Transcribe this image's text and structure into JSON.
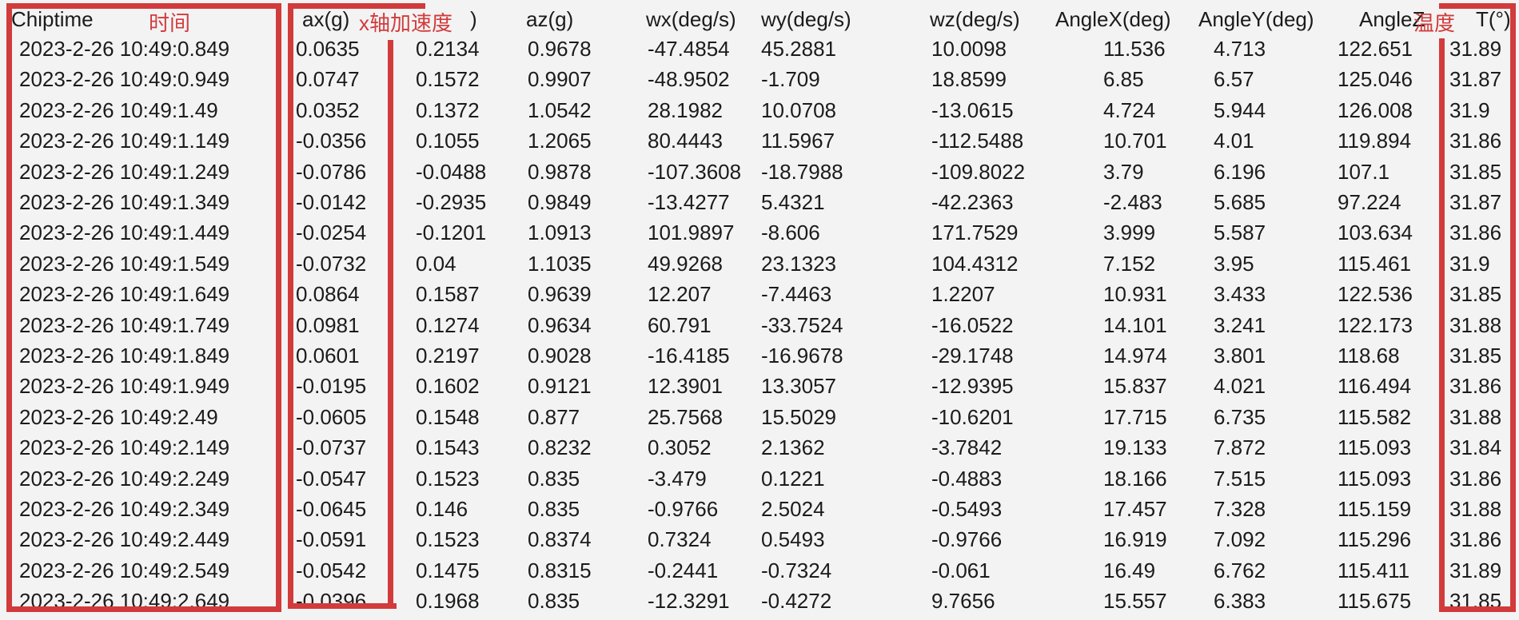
{
  "table": {
    "headers": {
      "chiptime": "Chiptime",
      "chiptime_annotation": "时间",
      "ax": "ax(g)",
      "ax_annotation": "x轴加速度",
      "ax_annotation_suffix": ")",
      "az": "az(g)",
      "wx": "wx(deg/s)",
      "wy": "wy(deg/s)",
      "wz": "wz(deg/s)",
      "angle_x": "AngleX(deg)",
      "angle_y": "AngleY(deg)",
      "angle_z": "AngleZ",
      "temperature_annotation": "温度",
      "t": "T(°)"
    },
    "columns": [
      "Chiptime",
      "ax(g)",
      "ay(g)",
      "az(g)",
      "wx(deg/s)",
      "wy(deg/s)",
      "wz(deg/s)",
      "AngleX(deg)",
      "AngleY(deg)",
      "AngleZ",
      "T(°)"
    ],
    "rows": [
      [
        "2023-2-26 10:49:0.849",
        "0.0635",
        "0.2134",
        "0.9678",
        "-47.4854",
        "45.2881",
        "10.0098",
        "11.536",
        "4.713",
        "122.651",
        "31.89"
      ],
      [
        "2023-2-26 10:49:0.949",
        "0.0747",
        "0.1572",
        "0.9907",
        "-48.9502",
        "-1.709",
        "18.8599",
        "6.85",
        "6.57",
        "125.046",
        "31.87"
      ],
      [
        "2023-2-26 10:49:1.49",
        "0.0352",
        "0.1372",
        "1.0542",
        "28.1982",
        "10.0708",
        "-13.0615",
        "4.724",
        "5.944",
        "126.008",
        "31.9"
      ],
      [
        "2023-2-26 10:49:1.149",
        "-0.0356",
        "0.1055",
        "1.2065",
        "80.4443",
        "11.5967",
        "-112.5488",
        "10.701",
        "4.01",
        "119.894",
        "31.86"
      ],
      [
        "2023-2-26 10:49:1.249",
        "-0.0786",
        "-0.0488",
        "0.9878",
        "-107.3608",
        "-18.7988",
        "-109.8022",
        "3.79",
        "6.196",
        "107.1",
        "31.85"
      ],
      [
        "2023-2-26 10:49:1.349",
        "-0.0142",
        "-0.2935",
        "0.9849",
        "-13.4277",
        "5.4321",
        "-42.2363",
        "-2.483",
        "5.685",
        "97.224",
        "31.87"
      ],
      [
        "2023-2-26 10:49:1.449",
        "-0.0254",
        "-0.1201",
        "1.0913",
        "101.9897",
        "-8.606",
        "171.7529",
        "3.999",
        "5.587",
        "103.634",
        "31.86"
      ],
      [
        "2023-2-26 10:49:1.549",
        "-0.0732",
        "0.04",
        "1.1035",
        "49.9268",
        "23.1323",
        "104.4312",
        "7.152",
        "3.95",
        "115.461",
        "31.9"
      ],
      [
        "2023-2-26 10:49:1.649",
        "0.0864",
        "0.1587",
        "0.9639",
        "12.207",
        "-7.4463",
        "1.2207",
        "10.931",
        "3.433",
        "122.536",
        "31.85"
      ],
      [
        "2023-2-26 10:49:1.749",
        "0.0981",
        "0.1274",
        "0.9634",
        "60.791",
        "-33.7524",
        "-16.0522",
        "14.101",
        "3.241",
        "122.173",
        "31.88"
      ],
      [
        "2023-2-26 10:49:1.849",
        "0.0601",
        "0.2197",
        "0.9028",
        "-16.4185",
        "-16.9678",
        "-29.1748",
        "14.974",
        "3.801",
        "118.68",
        "31.85"
      ],
      [
        "2023-2-26 10:49:1.949",
        "-0.0195",
        "0.1602",
        "0.9121",
        "12.3901",
        "13.3057",
        "-12.9395",
        "15.837",
        "4.021",
        "116.494",
        "31.86"
      ],
      [
        "2023-2-26 10:49:2.49",
        "-0.0605",
        "0.1548",
        "0.877",
        "25.7568",
        "15.5029",
        "-10.6201",
        "17.715",
        "6.735",
        "115.582",
        "31.88"
      ],
      [
        "2023-2-26 10:49:2.149",
        "-0.0737",
        "0.1543",
        "0.8232",
        "0.3052",
        "2.1362",
        "-3.7842",
        "19.133",
        "7.872",
        "115.093",
        "31.84"
      ],
      [
        "2023-2-26 10:49:2.249",
        "-0.0547",
        "0.1523",
        "0.835",
        "-3.479",
        "0.1221",
        "-0.4883",
        "18.166",
        "7.515",
        "115.093",
        "31.86"
      ],
      [
        "2023-2-26 10:49:2.349",
        "-0.0645",
        "0.146",
        "0.835",
        "-0.9766",
        "2.5024",
        "-0.5493",
        "17.457",
        "7.328",
        "115.159",
        "31.88"
      ],
      [
        "2023-2-26 10:49:2.449",
        "-0.0591",
        "0.1523",
        "0.8374",
        "0.7324",
        "0.5493",
        "-0.9766",
        "16.919",
        "7.092",
        "115.296",
        "31.86"
      ],
      [
        "2023-2-26 10:49:2.549",
        "-0.0542",
        "0.1475",
        "0.8315",
        "-0.2441",
        "-0.7324",
        "-0.061",
        "16.49",
        "6.762",
        "115.411",
        "31.89"
      ],
      [
        "2023-2-26 10:49:2.649",
        "-0.0396",
        "0.1968",
        "0.835",
        "-12.3291",
        "-0.4272",
        "9.7656",
        "15.557",
        "6.383",
        "115.675",
        "31.85"
      ]
    ]
  },
  "colors": {
    "annotation_red": "#d23b3b",
    "background": "#f3f3f4",
    "text": "#1b1b1b"
  }
}
